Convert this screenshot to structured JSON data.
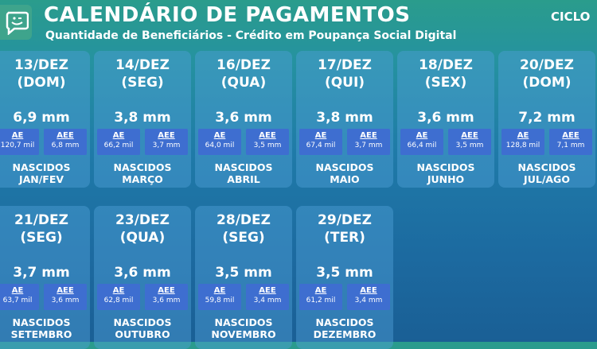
{
  "header": {
    "title": "CALENDÁRIO DE PAGAMENTOS",
    "subtitle": "Quantidade de Beneficiários - Crédito em Poupança Social Digital",
    "ciclo": "CICLO"
  },
  "labels": {
    "ae": "AE",
    "aee": "AEE",
    "nascidos": "NASCIDOS"
  },
  "colors": {
    "card": "#50a0d7",
    "box": "#3e6ed0",
    "bg_top": "#2a9c8c",
    "bg_bottom": "#1a5f95"
  },
  "cards": [
    {
      "date": "13/DEZ",
      "day": "(DOM)",
      "total": "6,9 mm",
      "ae": "120,7 mil",
      "aee": "6,8 mm",
      "month": "JAN/FEV"
    },
    {
      "date": "14/DEZ",
      "day": "(SEG)",
      "total": "3,8 mm",
      "ae": "66,2 mil",
      "aee": "3,7 mm",
      "month": "MARÇO"
    },
    {
      "date": "16/DEZ",
      "day": "(QUA)",
      "total": "3,6 mm",
      "ae": "64,0 mil",
      "aee": "3,5 mm",
      "month": "ABRIL"
    },
    {
      "date": "17/DEZ",
      "day": "(QUI)",
      "total": "3,8 mm",
      "ae": "67,4 mil",
      "aee": "3,7 mm",
      "month": "MAIO"
    },
    {
      "date": "18/DEZ",
      "day": "(SEX)",
      "total": "3,6 mm",
      "ae": "66,4 mil",
      "aee": "3,5 mm",
      "month": "JUNHO"
    },
    {
      "date": "20/DEZ",
      "day": "(DOM)",
      "total": "7,2 mm",
      "ae": "128,8 mil",
      "aee": "7,1 mm",
      "month": "JUL/AGO"
    },
    {
      "date": "21/DEZ",
      "day": "(SEG)",
      "total": "3,7 mm",
      "ae": "63,7 mil",
      "aee": "3,6 mm",
      "month": "SETEMBRO"
    },
    {
      "date": "23/DEZ",
      "day": "(QUA)",
      "total": "3,6 mm",
      "ae": "62,8 mil",
      "aee": "3,6 mm",
      "month": "OUTUBRO"
    },
    {
      "date": "28/DEZ",
      "day": "(SEG)",
      "total": "3,5 mm",
      "ae": "59,8 mil",
      "aee": "3,4 mm",
      "month": "NOVEMBRO"
    },
    {
      "date": "29/DEZ",
      "day": "(TER)",
      "total": "3,5 mm",
      "ae": "61,2 mil",
      "aee": "3,4 mm",
      "month": "DEZEMBRO"
    }
  ]
}
